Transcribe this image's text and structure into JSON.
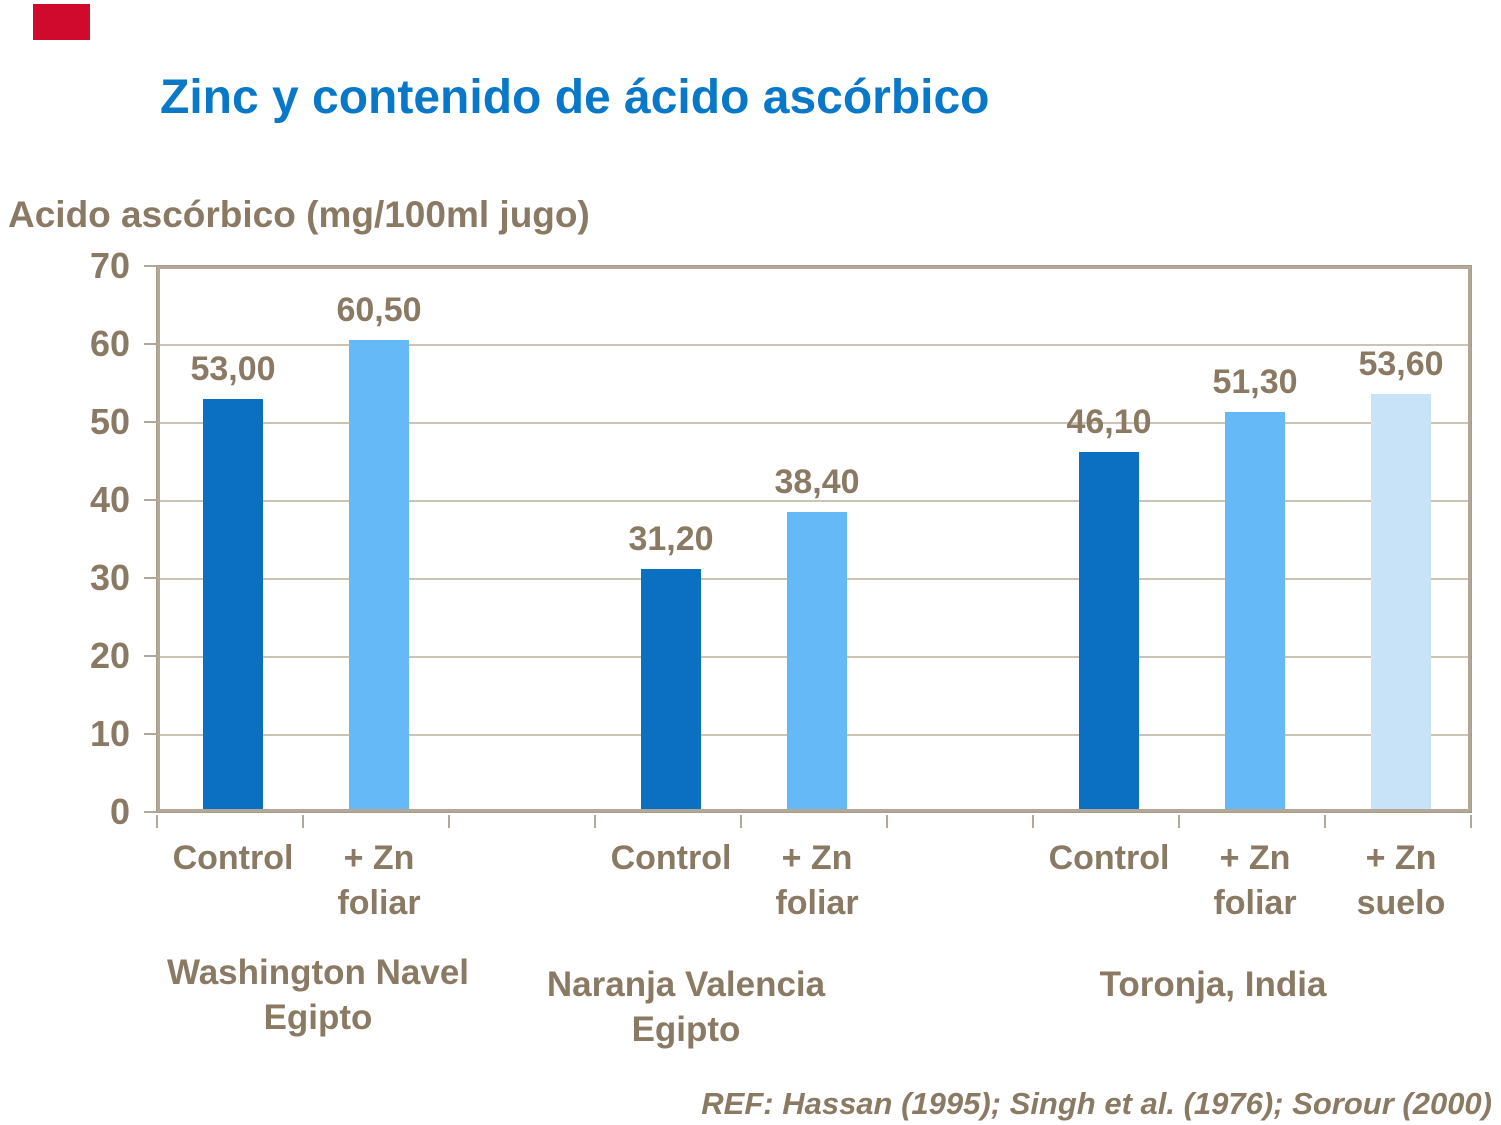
{
  "slide": {
    "title": "Zinc y contenido de ácido ascórbico",
    "reference": "REF: Hassan (1995); Singh et al. (1976); Sorour (2000)",
    "corner_mark_color": "#cf0a2c"
  },
  "colors": {
    "title_blue": "#0a78c8",
    "text_brown": "#8a7a64",
    "plot_border": "#b3a898",
    "plot_border_dark": "#a match",
    "gridline": "#cdc3b3",
    "bar_dark_blue": "#0b70c2",
    "bar_light_blue": "#66b9f7",
    "bar_pale_blue": "#c8e2f7"
  },
  "chart_data": {
    "type": "bar",
    "title": "Zinc y contenido de ácido ascórbico",
    "ylabel": "Acido ascórbico (mg/100ml jugo)",
    "xlabel": "",
    "ylim": [
      0,
      70
    ],
    "yticks": [
      0,
      10,
      20,
      30,
      40,
      50,
      60,
      70
    ],
    "grid": true,
    "legend": false,
    "value_label_format": "decimal comma, two decimals",
    "groups": [
      {
        "label": "Washington Navel Egipto",
        "label_lines": [
          "Washington Navel",
          "Egipto"
        ],
        "bars": [
          {
            "category": "Control",
            "category_lines": [
              "Control"
            ],
            "value": 53.0,
            "display": "53,00",
            "color": "bar_dark_blue"
          },
          {
            "category": "+ Zn foliar",
            "category_lines": [
              "+ Zn",
              "foliar"
            ],
            "value": 60.5,
            "display": "60,50",
            "color": "bar_light_blue"
          }
        ]
      },
      {
        "label": "Naranja Valencia Egipto",
        "label_lines": [
          "Naranja Valencia",
          "Egipto"
        ],
        "bars": [
          {
            "category": "Control",
            "category_lines": [
              "Control"
            ],
            "value": 31.2,
            "display": "31,20",
            "color": "bar_dark_blue"
          },
          {
            "category": "+ Zn foliar",
            "category_lines": [
              "+ Zn",
              "foliar"
            ],
            "value": 38.4,
            "display": "38,40",
            "color": "bar_light_blue"
          }
        ]
      },
      {
        "label": "Toronja, India",
        "label_lines": [
          "Toronja, India"
        ],
        "bars": [
          {
            "category": "Control",
            "category_lines": [
              "Control"
            ],
            "value": 46.1,
            "display": "46,10",
            "color": "bar_dark_blue"
          },
          {
            "category": "+ Zn foliar",
            "category_lines": [
              "+ Zn",
              "foliar"
            ],
            "value": 51.3,
            "display": "51,30",
            "color": "bar_light_blue"
          },
          {
            "category": "+ Zn suelo",
            "category_lines": [
              "+ Zn",
              "suelo"
            ],
            "value": 53.6,
            "display": "53,60",
            "color": "bar_pale_blue"
          }
        ]
      }
    ]
  }
}
